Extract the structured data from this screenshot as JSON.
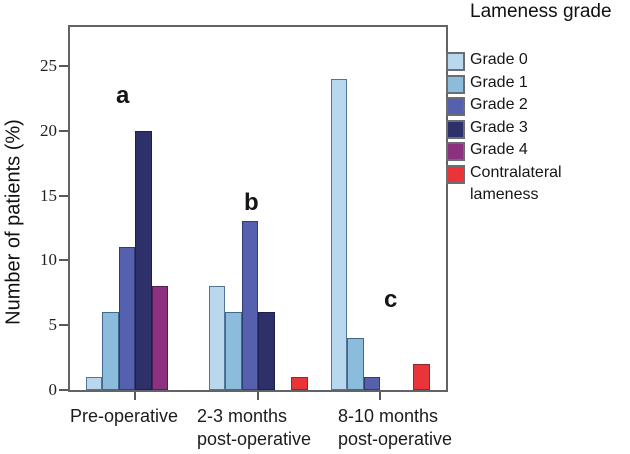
{
  "chart_data": {
    "type": "bar",
    "title": "",
    "xlabel": "",
    "ylabel": "Number of patients (%)",
    "ylim": [
      0,
      28
    ],
    "yticks": [
      0,
      5,
      10,
      15,
      20,
      25
    ],
    "grid": false,
    "legend_title": "Lameness grade",
    "legend_position": "right-outside",
    "categories": [
      "Pre-operative",
      "2-3 months post-operative",
      "8-10 months post-operative"
    ],
    "category_label_lines": [
      [
        "Pre-operative"
      ],
      [
        "2-3 months",
        "post-operative"
      ],
      [
        "8-10 months",
        "post-operative"
      ]
    ],
    "series": [
      {
        "name": "Grade 0",
        "color": "#b9d8ee",
        "border": "#53749a",
        "values": [
          1,
          8,
          24
        ]
      },
      {
        "name": "Grade 1",
        "color": "#8cbcdb",
        "border": "#41678f",
        "values": [
          6,
          6,
          4
        ]
      },
      {
        "name": "Grade 2",
        "color": "#5561ae",
        "border": "#333c72",
        "values": [
          11,
          13,
          1
        ]
      },
      {
        "name": "Grade 3",
        "color": "#2e3069",
        "border": "#1e2048",
        "values": [
          20,
          6,
          0
        ]
      },
      {
        "name": "Grade 4",
        "color": "#8b3180",
        "border": "#531d4e",
        "values": [
          8,
          0,
          0
        ]
      },
      {
        "name": "Contralateral lameness",
        "color": "#e93439",
        "border": "#93262b",
        "values": [
          0,
          1,
          2
        ]
      }
    ],
    "annotations": [
      {
        "text": "a",
        "near": "Pre-operative Grade 3 bar"
      },
      {
        "text": "b",
        "near": "2-3 months post-operative Grade 2 bar"
      },
      {
        "text": "c",
        "near": "8-10 months post-operative group"
      }
    ]
  }
}
